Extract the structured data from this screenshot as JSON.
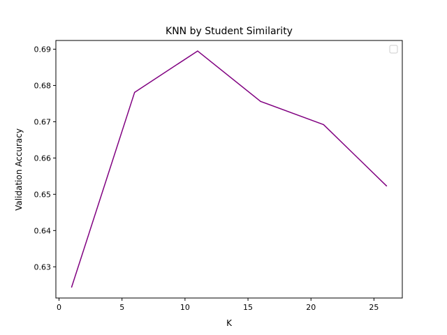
{
  "chart_data": {
    "type": "line",
    "title": "KNN by Student Similarity",
    "xlabel": "K",
    "ylabel": "Validation Accuracy",
    "xlim": [
      -0.25,
      27.25
    ],
    "ylim": [
      0.6214,
      0.6924
    ],
    "xticks": [
      0,
      5,
      10,
      15,
      20,
      25
    ],
    "yticks": [
      0.63,
      0.64,
      0.65,
      0.66,
      0.67,
      0.68,
      0.69
    ],
    "ytick_labels": [
      "0.63",
      "0.64",
      "0.65",
      "0.66",
      "0.67",
      "0.68",
      "0.69"
    ],
    "grid": false,
    "legend": "top-right, empty",
    "series": [
      {
        "color": "#800080",
        "x": [
          1,
          6,
          11,
          16,
          21,
          26
        ],
        "y": [
          0.6244,
          0.6781,
          0.6895,
          0.6756,
          0.6692,
          0.6523
        ]
      }
    ]
  }
}
